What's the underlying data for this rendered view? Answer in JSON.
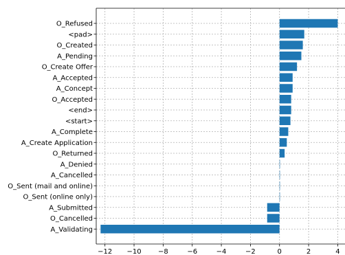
{
  "chart_data": {
    "type": "bar",
    "orientation": "horizontal",
    "title": "",
    "xlabel": "",
    "ylabel": "",
    "categories": [
      "O_Refused",
      "<pad>",
      "O_Created",
      "A_Pending",
      "O_Create Offer",
      "A_Accepted",
      "A_Concept",
      "O_Accepted",
      "<end>",
      "<start>",
      "A_Complete",
      "A_Create Application",
      "O_Returned",
      "A_Denied",
      "A_Cancelled",
      "O_Sent (mail and online)",
      "O_Sent (online only)",
      "A_Submitted",
      "O_Cancelled",
      "A_Validating"
    ],
    "values": [
      4.0,
      1.7,
      1.6,
      1.5,
      1.2,
      0.9,
      0.9,
      0.8,
      0.8,
      0.75,
      0.6,
      0.5,
      0.35,
      0.02,
      0.02,
      0.01,
      0.01,
      -0.85,
      -0.85,
      -12.3
    ],
    "x_ticks": [
      -12,
      -10,
      -8,
      -6,
      -4,
      -2,
      0,
      2,
      4
    ],
    "x_tick_labels": [
      "−12",
      "−10",
      "−8",
      "−6",
      "−4",
      "−2",
      "0",
      "2",
      "4"
    ],
    "xlim": [
      -12.6,
      4.5
    ],
    "grid": true,
    "bar_color": "#1f77b4",
    "grid_color": "#b0b0b0"
  }
}
